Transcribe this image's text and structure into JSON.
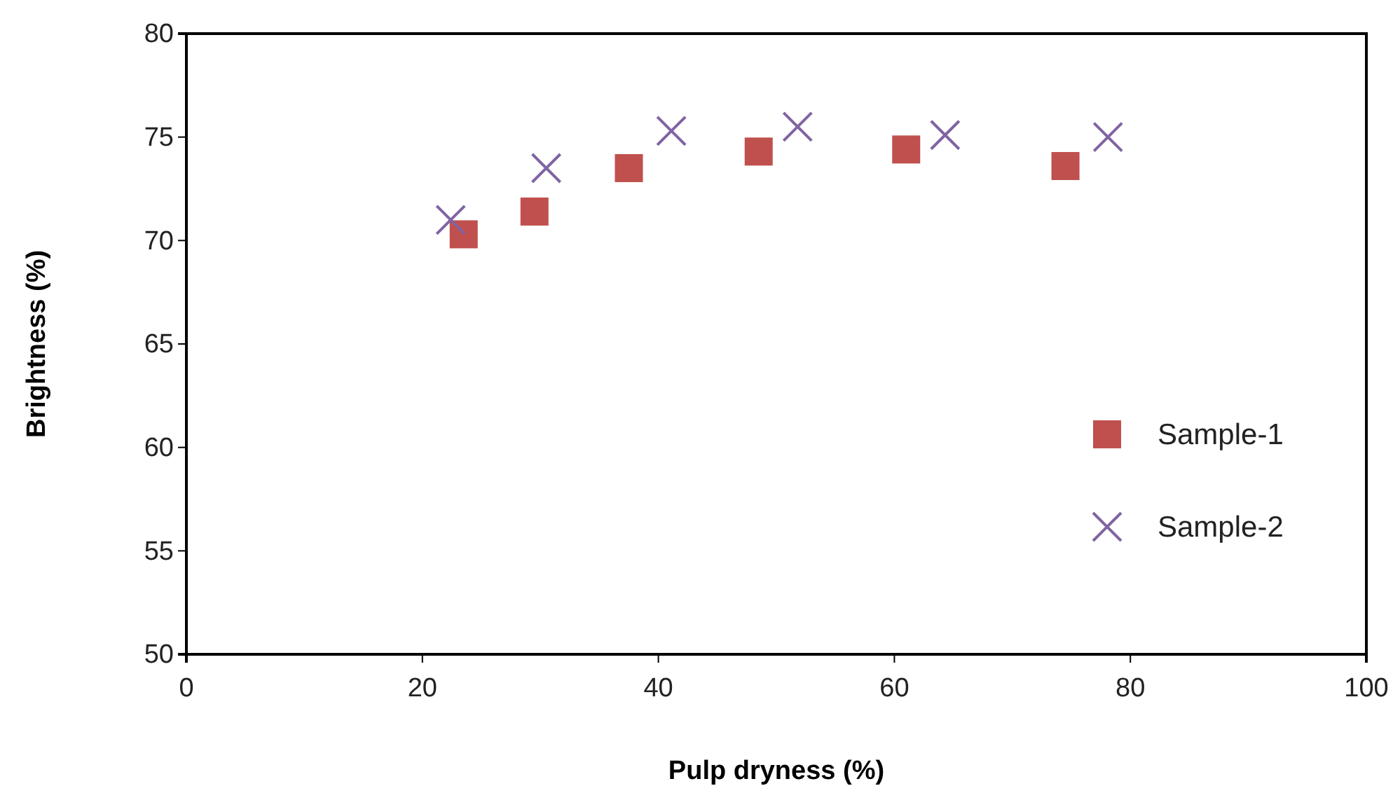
{
  "chart_data": {
    "type": "scatter",
    "xlabel": "Pulp dryness (%)",
    "ylabel": "Brightness (%)",
    "xlim": [
      0,
      100
    ],
    "xticks": [
      0,
      20,
      40,
      60,
      80,
      100
    ],
    "ylim": [
      50,
      80
    ],
    "yticks": [
      50,
      55,
      60,
      65,
      70,
      75,
      80
    ],
    "grid": false,
    "legend": "right",
    "series": [
      {
        "name": "Sample-1",
        "color": "#c0504d",
        "marker": "square",
        "x": [
          23.5,
          29.5,
          37.5,
          48.5,
          61,
          74.5
        ],
        "values": [
          70.3,
          71.4,
          73.5,
          74.3,
          74.4,
          73.6
        ]
      },
      {
        "name": "Sample-2",
        "color": "#8064a2",
        "marker": "cross",
        "x": [
          22.4,
          30.5,
          41.1,
          51.8,
          64.3,
          78.1
        ],
        "values": [
          71.0,
          73.5,
          75.3,
          75.5,
          75.1,
          75.0
        ]
      }
    ]
  }
}
